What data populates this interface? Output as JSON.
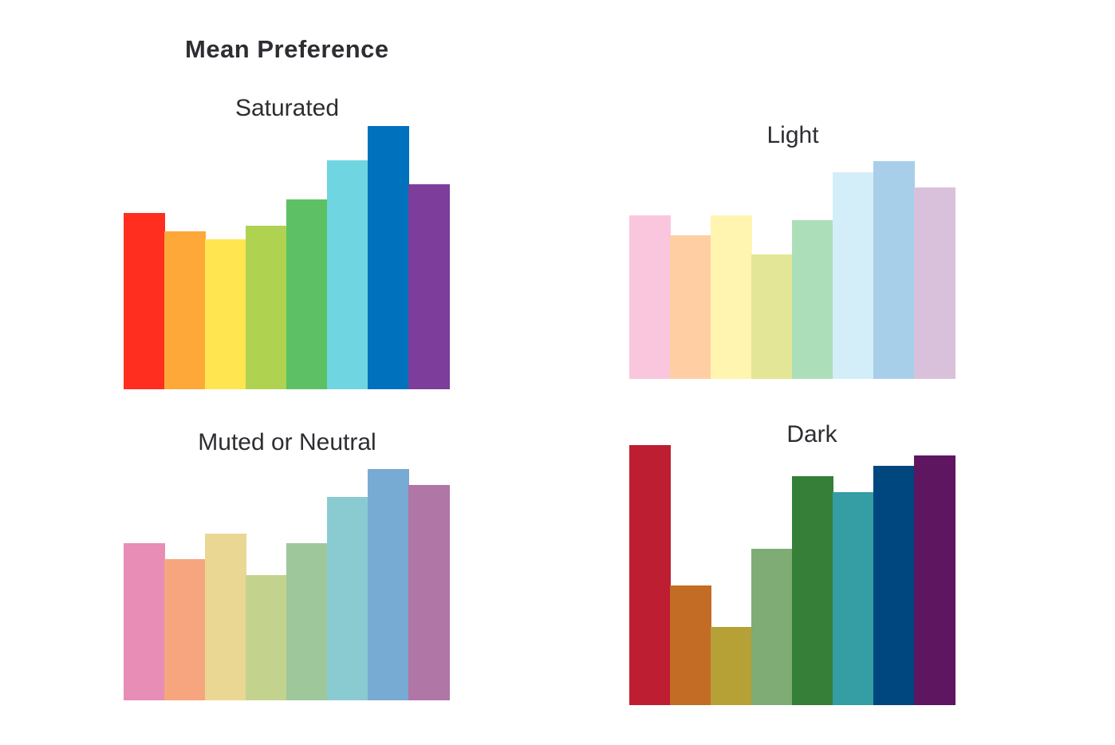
{
  "title": "Mean Preference",
  "chart_data": [
    {
      "type": "bar",
      "title": "Saturated",
      "categories": [
        "red",
        "orange",
        "yellow",
        "chartreuse",
        "green",
        "cyan",
        "blue",
        "purple"
      ],
      "values": [
        0.67,
        0.6,
        0.57,
        0.62,
        0.72,
        0.87,
        1.0,
        0.78
      ],
      "colors": [
        "#ff2e1f",
        "#ffa83a",
        "#ffe650",
        "#b0d251",
        "#5ec065",
        "#6fd5e0",
        "#0071bc",
        "#7d3d9a"
      ],
      "ylim": [
        0,
        1
      ]
    },
    {
      "type": "bar",
      "title": "Light",
      "categories": [
        "red",
        "orange",
        "yellow",
        "chartreuse",
        "green",
        "cyan",
        "blue",
        "purple"
      ],
      "values": [
        0.75,
        0.66,
        0.75,
        0.57,
        0.73,
        0.95,
        1.0,
        0.88
      ],
      "colors": [
        "#f9c6dd",
        "#ffcfa3",
        "#fff5b0",
        "#e3e597",
        "#acdfb9",
        "#d4eef9",
        "#a8cfea",
        "#d9c1dc"
      ],
      "ylim": [
        0,
        1
      ]
    },
    {
      "type": "bar",
      "title": "Muted or Neutral",
      "categories": [
        "red",
        "orange",
        "yellow",
        "chartreuse",
        "green",
        "cyan",
        "blue",
        "purple"
      ],
      "values": [
        0.68,
        0.61,
        0.72,
        0.54,
        0.68,
        0.88,
        1.0,
        0.93
      ],
      "colors": [
        "#e78db6",
        "#f6a57f",
        "#ead794",
        "#c3d38e",
        "#9fc79c",
        "#8acbd2",
        "#77abd3",
        "#b076a6"
      ],
      "ylim": [
        0,
        1
      ]
    },
    {
      "type": "bar",
      "title": "Dark",
      "categories": [
        "red",
        "orange",
        "yellow",
        "chartreuse",
        "green",
        "cyan",
        "blue",
        "purple"
      ],
      "values": [
        1.0,
        0.46,
        0.3,
        0.6,
        0.88,
        0.82,
        0.92,
        0.96
      ],
      "colors": [
        "#be1e31",
        "#c36c26",
        "#b6a136",
        "#7eac74",
        "#357f39",
        "#349ea4",
        "#00467f",
        "#5e1660"
      ],
      "ylim": [
        0,
        1
      ]
    }
  ]
}
